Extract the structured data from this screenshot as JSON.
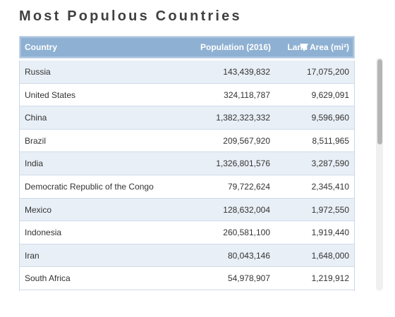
{
  "header": {
    "title": "Most Populous Countries"
  },
  "table": {
    "columns": [
      "Country",
      "Population (2016)",
      "Land Area (mi²)"
    ],
    "rows": [
      [
        "Russia",
        "143,439,832",
        "17,075,200"
      ],
      [
        "United States",
        "324,118,787",
        "9,629,091"
      ],
      [
        "China",
        "1,382,323,332",
        "9,596,960"
      ],
      [
        "Brazil",
        "209,567,920",
        "8,511,965"
      ],
      [
        "India",
        "1,326,801,576",
        "3,287,590"
      ],
      [
        "Democratic Republic of the Congo",
        "79,722,624",
        "2,345,410"
      ],
      [
        "Mexico",
        "128,632,004",
        "1,972,550"
      ],
      [
        "Indonesia",
        "260,581,100",
        "1,919,440"
      ],
      [
        "Iran",
        "80,043,146",
        "1,648,000"
      ],
      [
        "South Africa",
        "54,978,907",
        "1,219,912"
      ]
    ]
  }
}
